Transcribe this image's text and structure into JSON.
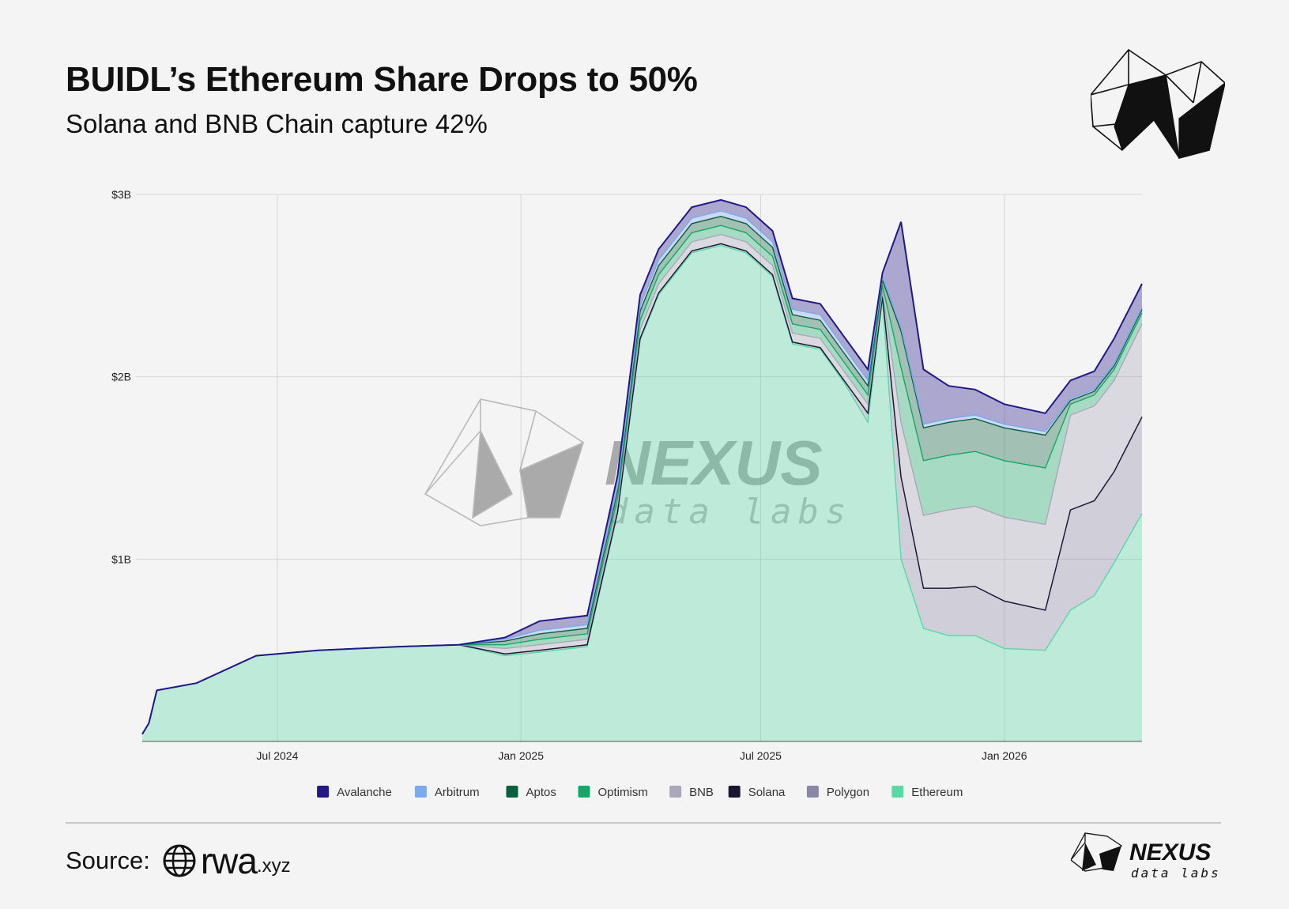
{
  "header": {
    "title": "BUIDL’s Ethereum Share Drops to 50%",
    "subtitle": "Solana and BNB Chain capture 42%"
  },
  "watermark": {
    "brand": "NEXUS",
    "tagline": "data labs"
  },
  "footer": {
    "source_label": "Source:",
    "source_name": "rwa",
    "source_suffix": ".xyz",
    "brand": "NEXUS",
    "tagline": "data labs"
  },
  "chart_data": {
    "type": "area",
    "stacked": true,
    "title": "",
    "xlabel": "",
    "ylabel": "",
    "ylim": [
      0,
      3.0
    ],
    "y_unit": "$B",
    "y_ticks": [
      {
        "value": 1,
        "label": "$1B"
      },
      {
        "value": 2,
        "label": "$2B"
      },
      {
        "value": 3,
        "label": "$3B"
      }
    ],
    "x_ticks": [
      {
        "date": "2024-07-01",
        "label": "Jul 2024"
      },
      {
        "date": "2025-01-01",
        "label": "Jan 2025"
      },
      {
        "date": "2025-07-01",
        "label": "Jul 2025"
      },
      {
        "date": "2026-01-01",
        "label": "Jan 2026"
      }
    ],
    "x_range": [
      "2024-03-21",
      "2026-04-15"
    ],
    "grid": true,
    "legend_position": "bottom",
    "x": [
      "2024-03-21",
      "2024-03-26",
      "2024-04-01",
      "2024-05-01",
      "2024-06-15",
      "2024-08-01",
      "2024-10-01",
      "2024-11-15",
      "2024-12-20",
      "2025-01-15",
      "2025-02-20",
      "2025-03-15",
      "2025-04-01",
      "2025-04-15",
      "2025-05-10",
      "2025-06-01",
      "2025-06-20",
      "2025-07-10",
      "2025-07-25",
      "2025-08-15",
      "2025-09-01",
      "2025-09-20",
      "2025-10-01",
      "2025-10-15",
      "2025-11-01",
      "2025-11-20",
      "2025-12-10",
      "2026-01-01",
      "2026-02-01",
      "2026-02-20",
      "2026-03-10",
      "2026-03-25",
      "2026-04-15"
    ],
    "series": [
      {
        "name": "Ethereum",
        "color": "#5ad8a6",
        "values": [
          0.04,
          0.1,
          0.28,
          0.32,
          0.47,
          0.5,
          0.52,
          0.53,
          0.47,
          0.49,
          0.52,
          1.25,
          2.2,
          2.45,
          2.68,
          2.72,
          2.68,
          2.55,
          2.18,
          2.15,
          1.98,
          1.75,
          2.43,
          1.0,
          0.62,
          0.58,
          0.58,
          0.51,
          0.5,
          0.72,
          0.8,
          0.98,
          1.25
        ]
      },
      {
        "name": "Polygon",
        "color": "#8a86a6",
        "values": [
          0,
          0,
          0,
          0,
          0,
          0,
          0,
          0,
          0.01,
          0.01,
          0.01,
          0.01,
          0.01,
          0.01,
          0.01,
          0.01,
          0.01,
          0.01,
          0.01,
          0.01,
          0.01,
          0.05,
          0.01,
          0.45,
          0.22,
          0.26,
          0.27,
          0.26,
          0.22,
          0.55,
          0.52,
          0.5,
          0.53
        ]
      },
      {
        "name": "Solana",
        "color": "#1a1530",
        "values": [
          0,
          0,
          0,
          0,
          0,
          0,
          0,
          0,
          0,
          0,
          0,
          0,
          0,
          0,
          0,
          0,
          0,
          0,
          0,
          0,
          0,
          0,
          0,
          0,
          0,
          0,
          0,
          0,
          0,
          0,
          0,
          0,
          0
        ]
      },
      {
        "name": "BNB",
        "color": "#aaa7ba",
        "values": [
          0,
          0,
          0,
          0,
          0,
          0,
          0,
          0,
          0.03,
          0.03,
          0.03,
          0.04,
          0.05,
          0.05,
          0.05,
          0.05,
          0.05,
          0.05,
          0.05,
          0.05,
          0.05,
          0.05,
          0.03,
          0.3,
          0.4,
          0.43,
          0.44,
          0.46,
          0.47,
          0.52,
          0.52,
          0.5,
          0.51
        ]
      },
      {
        "name": "Optimism",
        "color": "#14a866",
        "values": [
          0,
          0,
          0,
          0,
          0,
          0,
          0,
          0,
          0.02,
          0.03,
          0.03,
          0.04,
          0.05,
          0.05,
          0.05,
          0.05,
          0.05,
          0.05,
          0.05,
          0.05,
          0.05,
          0.05,
          0.03,
          0.3,
          0.3,
          0.3,
          0.3,
          0.31,
          0.31,
          0.06,
          0.06,
          0.06,
          0.06
        ]
      },
      {
        "name": "Aptos",
        "color": "#0b5e3e",
        "values": [
          0,
          0,
          0,
          0,
          0,
          0,
          0,
          0,
          0.02,
          0.03,
          0.03,
          0.04,
          0.05,
          0.05,
          0.05,
          0.05,
          0.05,
          0.05,
          0.05,
          0.05,
          0.05,
          0.05,
          0.03,
          0.2,
          0.18,
          0.18,
          0.18,
          0.18,
          0.18,
          0.02,
          0.02,
          0.02,
          0.02
        ]
      },
      {
        "name": "Arbitrum",
        "color": "#7aaaf0",
        "values": [
          0,
          0,
          0,
          0,
          0,
          0,
          0,
          0,
          0.01,
          0.02,
          0.02,
          0.02,
          0.03,
          0.03,
          0.03,
          0.03,
          0.03,
          0.03,
          0.03,
          0.03,
          0.03,
          0.03,
          0.02,
          0.02,
          0.02,
          0.02,
          0.02,
          0.02,
          0.02,
          0.01,
          0.01,
          0.01,
          0.01
        ]
      },
      {
        "name": "Avalanche",
        "color": "#221887",
        "values": [
          0,
          0,
          0,
          0,
          0,
          0,
          0,
          0,
          0.01,
          0.05,
          0.05,
          0.06,
          0.06,
          0.06,
          0.06,
          0.06,
          0.06,
          0.06,
          0.06,
          0.06,
          0.06,
          0.06,
          0.02,
          0.58,
          0.3,
          0.18,
          0.14,
          0.11,
          0.1,
          0.1,
          0.1,
          0.14,
          0.13
        ]
      }
    ],
    "legend_order": [
      "Avalanche",
      "Arbitrum",
      "Aptos",
      "Optimism",
      "BNB",
      "Solana",
      "Polygon",
      "Ethereum"
    ]
  }
}
